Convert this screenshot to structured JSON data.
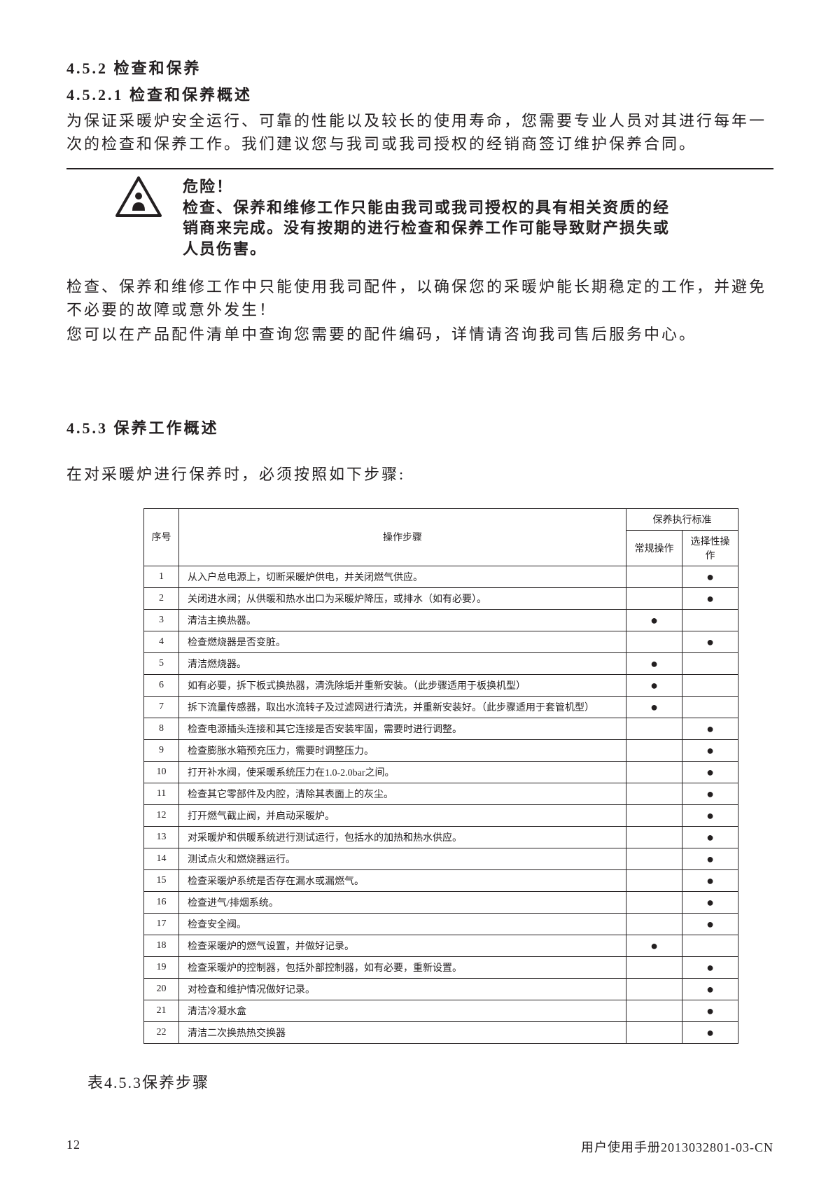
{
  "headings": {
    "h452": "4.5.2 检查和保养",
    "h4521": "4.5.2.1 检查和保养概述",
    "h453": "4.5.3 保养工作概述"
  },
  "body": {
    "p1": "为保证采暖炉安全运行、可靠的性能以及较长的使用寿命，您需要专业人员对其进行每年一次的检查和保养工作。我们建议您与我司或我司授权的经销商签订维护保养合同。",
    "p2": "检查、保养和维修工作中只能使用我司配件，以确保您的采暖炉能长期稳定的工作，并避免不必要的故障或意外发生！",
    "p3": "您可以在产品配件清单中查询您需要的配件编码，详情请咨询我司售后服务中心。",
    "steps_intro": "在对采暖炉进行保养时，必须按照如下步骤:"
  },
  "warning": {
    "title": "危险！",
    "text": "检查、保养和维修工作只能由我司或我司授权的具有相关资质的经销商来完成。没有按期的进行检查和保养工作可能导致财产损失或人员伤害。"
  },
  "table": {
    "headers": {
      "seq": "序号",
      "steps": "操作步骤",
      "std_group": "保养执行标准",
      "std_routine": "常规操作",
      "std_optional": "选择性操作"
    },
    "rows": [
      {
        "n": "1",
        "step": "从入户总电源上，切断采暖炉供电，并关闭燃气供应。",
        "r": "",
        "o": "●"
      },
      {
        "n": "2",
        "step": "关闭进水阀；从供暖和热水出口为采暖炉降压，或排水（如有必要）。",
        "r": "",
        "o": "●"
      },
      {
        "n": "3",
        "step": "清洁主换热器。",
        "r": "●",
        "o": ""
      },
      {
        "n": "4",
        "step": "检查燃烧器是否变脏。",
        "r": "",
        "o": "●"
      },
      {
        "n": "5",
        "step": "清洁燃烧器。",
        "r": "●",
        "o": ""
      },
      {
        "n": "6",
        "step": "如有必要，拆下板式换热器，清洗除垢并重新安装。（此步骤适用于板换机型）",
        "r": "●",
        "o": ""
      },
      {
        "n": "7",
        "step": "拆下流量传感器，取出水流转子及过滤网进行清洗，并重新安装好。（此步骤适用于套管机型）",
        "r": "●",
        "o": ""
      },
      {
        "n": "8",
        "step": "检查电源插头连接和其它连接是否安装牢固，需要时进行调整。",
        "r": "",
        "o": "●"
      },
      {
        "n": "9",
        "step": "检查膨胀水箱预充压力，需要时调整压力。",
        "r": "",
        "o": "●"
      },
      {
        "n": "10",
        "step": "打开补水阀，使采暖系统压力在1.0-2.0bar之间。",
        "r": "",
        "o": "●"
      },
      {
        "n": "11",
        "step": "检查其它零部件及内腔，清除其表面上的灰尘。",
        "r": "",
        "o": "●"
      },
      {
        "n": "12",
        "step": "打开燃气截止阀，并启动采暖炉。",
        "r": "",
        "o": "●"
      },
      {
        "n": "13",
        "step": "对采暖炉和供暖系统进行测试运行，包括水的加热和热水供应。",
        "r": "",
        "o": "●"
      },
      {
        "n": "14",
        "step": "测试点火和燃烧器运行。",
        "r": "",
        "o": "●"
      },
      {
        "n": "15",
        "step": "检查采暖炉系统是否存在漏水或漏燃气。",
        "r": "",
        "o": "●"
      },
      {
        "n": "16",
        "step": "检查进气/排烟系统。",
        "r": "",
        "o": "●"
      },
      {
        "n": "17",
        "step": "检查安全阀。",
        "r": "",
        "o": "●"
      },
      {
        "n": "18",
        "step": "检查采暖炉的燃气设置，并做好记录。",
        "r": "●",
        "o": ""
      },
      {
        "n": "19",
        "step": "检查采暖炉的控制器，包括外部控制器，如有必要，重新设置。",
        "r": "",
        "o": "●"
      },
      {
        "n": "20",
        "step": "对检查和维护情况做好记录。",
        "r": "",
        "o": "●"
      },
      {
        "n": "21",
        "step": "清洁冷凝水盒",
        "r": "",
        "o": "●"
      },
      {
        "n": "22",
        "step": "清洁二次换热热交换器",
        "r": "",
        "o": "●"
      }
    ],
    "caption": "表4.5.3保养步骤"
  },
  "footer": {
    "page": "12",
    "doc": "用户使用手册2013032801-03-CN"
  },
  "colors": {
    "text": "#231f20",
    "bg": "#ffffff",
    "border": "#231f20"
  }
}
